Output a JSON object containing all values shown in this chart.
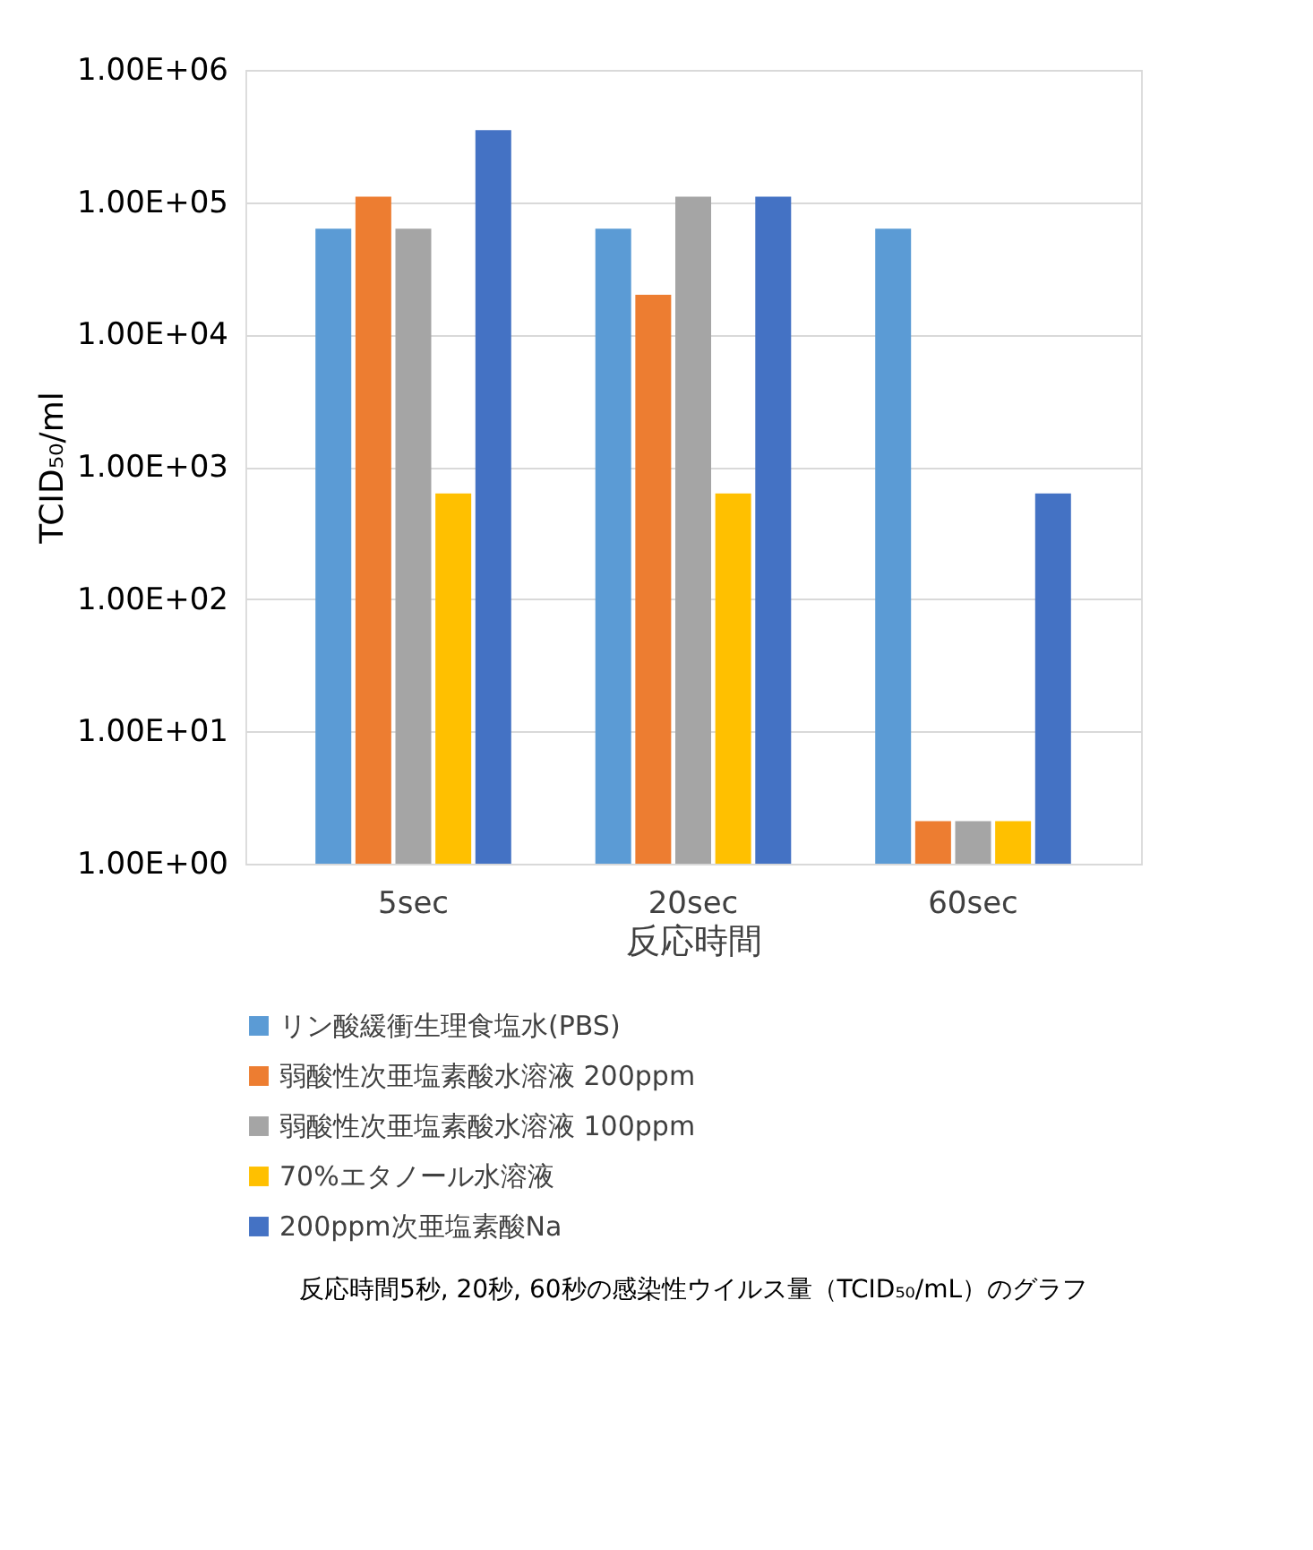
{
  "chart_data": {
    "type": "bar",
    "xlabel": "反応時間",
    "ylabel": "TCID₅₀/ml",
    "categories": [
      "5sec",
      "20sec",
      "60sec"
    ],
    "series": [
      {
        "name": "リン酸緩衝生理食塩水(PBS)",
        "color": "#5b9bd5",
        "values": [
          63000,
          63000,
          63000
        ]
      },
      {
        "name": "弱酸性次亜塩素酸水溶液 200ppm",
        "color": "#ed7d31",
        "values": [
          110000,
          20000,
          2.1
        ]
      },
      {
        "name": "弱酸性次亜塩素酸水溶液 100ppm",
        "color": "#a5a5a5",
        "values": [
          63000,
          110000,
          2.1
        ]
      },
      {
        "name": "70%エタノール水溶液",
        "color": "#ffc000",
        "values": [
          630,
          630,
          2.1
        ]
      },
      {
        "name": "200ppm次亜塩素酸Na",
        "color": "#4472c4",
        "values": [
          350000,
          110000,
          630
        ]
      }
    ],
    "log": "y",
    "ylim": [
      1,
      1000000
    ],
    "yticks": [
      {
        "value": 1,
        "label": "1.00E+00"
      },
      {
        "value": 10,
        "label": "1.00E+01"
      },
      {
        "value": 100,
        "label": "1.00E+02"
      },
      {
        "value": 1000,
        "label": "1.00E+03"
      },
      {
        "value": 10000,
        "label": "1.00E+04"
      },
      {
        "value": 100000,
        "label": "1.00E+05"
      },
      {
        "value": 1000000,
        "label": "1.00E+06"
      }
    ],
    "grid": "y",
    "legend": "bottom",
    "annotations": [
      "反応時間5秒, 20秒, 60秒の感染性ウイルス量（TCID₅₀/mL）のグラフ"
    ]
  }
}
